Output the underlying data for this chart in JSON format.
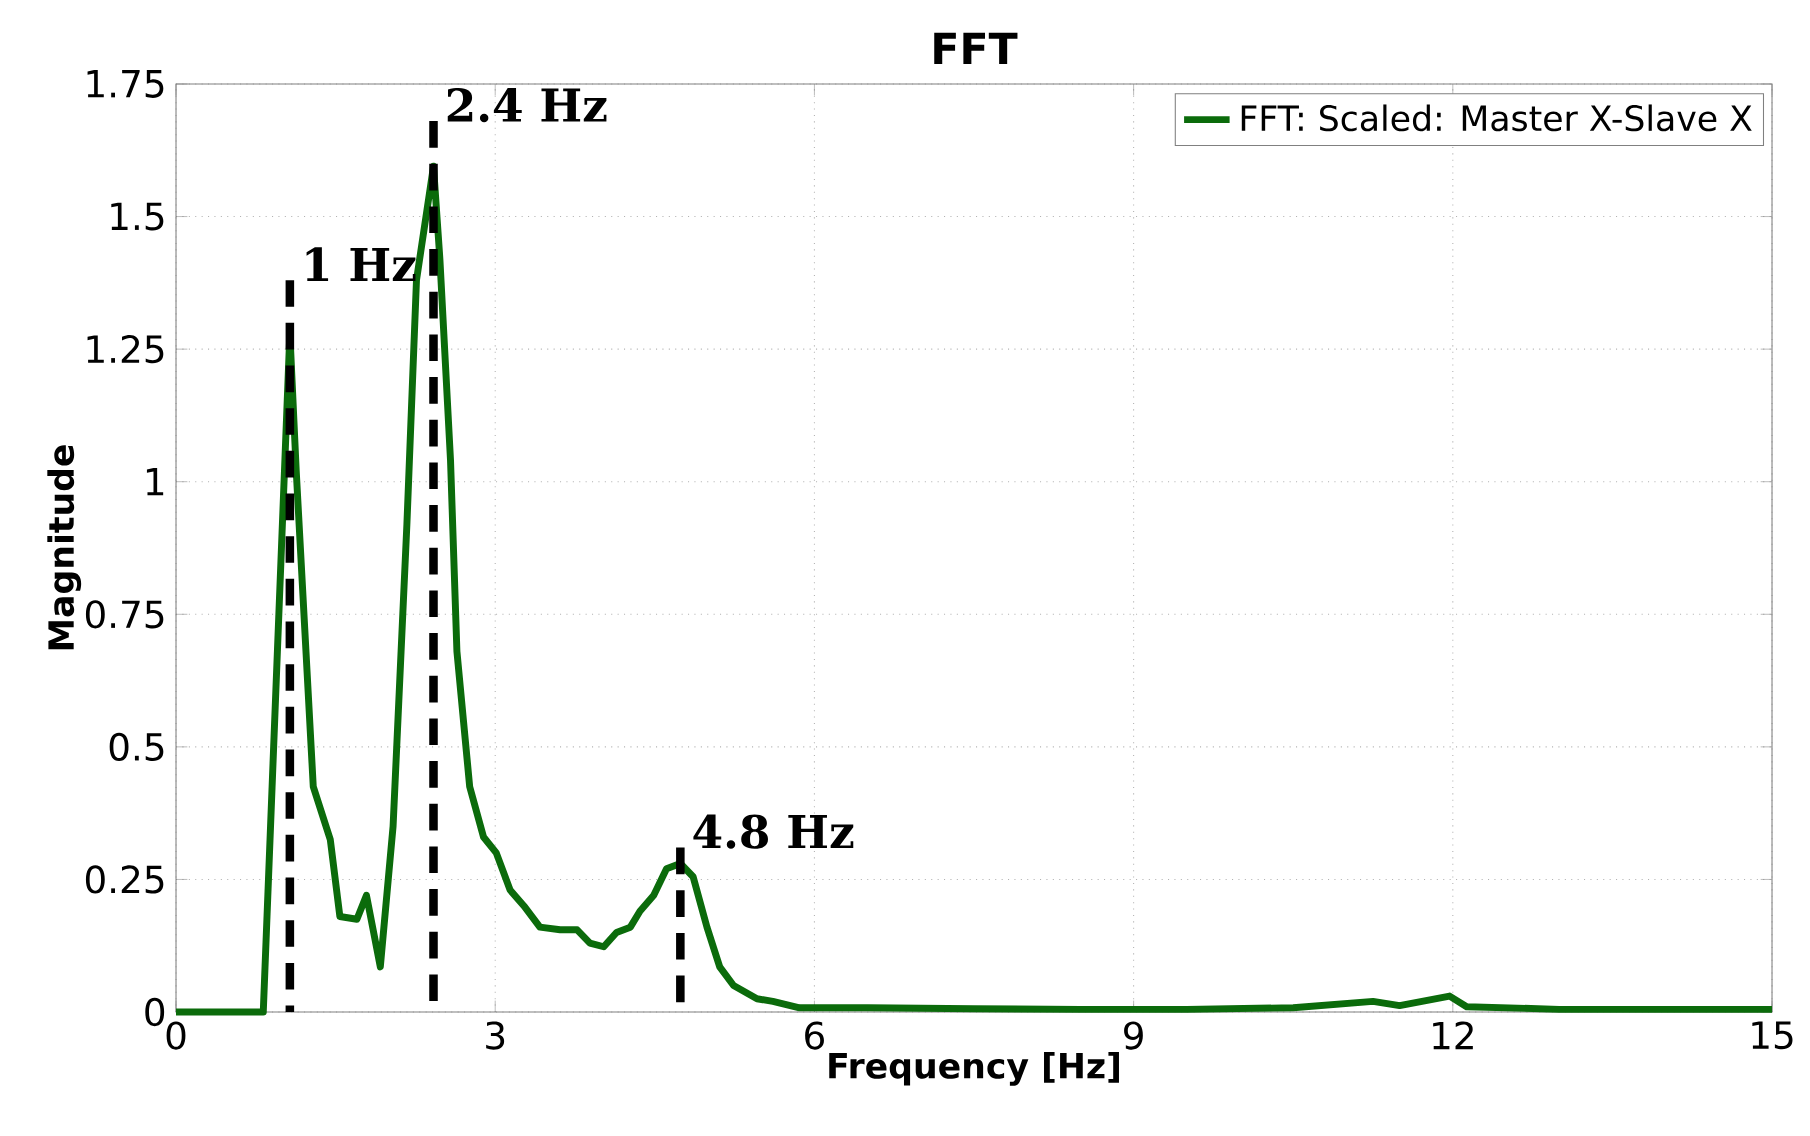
{
  "chart_data": {
    "type": "line",
    "title": "FFT",
    "xlabel": "Frequency [Hz]",
    "ylabel": "Magnitude",
    "series": [
      {
        "name": "FFT: Scaled: Master X-Slave X",
        "color": "#0b6b0b",
        "x": [
          0,
          0.82,
          1.07,
          1.13,
          1.29,
          1.45,
          1.54,
          1.7,
          1.79,
          1.92,
          2.04,
          2.17,
          2.26,
          2.42,
          2.48,
          2.58,
          2.64,
          2.76,
          2.89,
          3.01,
          3.14,
          3.27,
          3.42,
          3.61,
          3.77,
          3.89,
          4.02,
          4.14,
          4.27,
          4.36,
          4.49,
          4.61,
          4.74,
          4.86,
          4.99,
          5.11,
          5.24,
          5.46,
          5.61,
          5.86,
          6.5,
          7.5,
          8.5,
          9.5,
          10.5,
          11.25,
          11.5,
          11.97,
          12.13,
          13,
          14,
          15
        ],
        "values": [
          0,
          0,
          1.28,
          1.02,
          0.425,
          0.325,
          0.18,
          0.175,
          0.22,
          0.085,
          0.35,
          0.92,
          1.38,
          1.595,
          1.42,
          1.04,
          0.68,
          0.425,
          0.33,
          0.3,
          0.23,
          0.2,
          0.16,
          0.155,
          0.155,
          0.13,
          0.123,
          0.15,
          0.16,
          0.19,
          0.22,
          0.27,
          0.28,
          0.255,
          0.16,
          0.085,
          0.05,
          0.025,
          0.02,
          0.008,
          0.008,
          0.006,
          0.005,
          0.005,
          0.008,
          0.02,
          0.012,
          0.03,
          0.01,
          0.005,
          0.005,
          0.005
        ]
      },
      {
        "color": "#000000",
        "line_style": "dashed",
        "x": [
          1.07,
          1.07
        ],
        "values": [
          0,
          1.38
        ]
      },
      {
        "color": "#000000",
        "line_style": "dashed",
        "x": [
          2.42,
          2.42
        ],
        "values": [
          0,
          1.68
        ]
      },
      {
        "color": "#000000",
        "line_style": "dashed",
        "x": [
          4.74,
          4.74
        ],
        "values": [
          0,
          0.31
        ]
      }
    ],
    "xlim": [
      0,
      15
    ],
    "ylim": [
      0,
      1.75
    ],
    "xticks": [
      0,
      3,
      6,
      9,
      12,
      15
    ],
    "yticks": [
      0,
      0.25,
      0.5,
      0.75,
      1,
      1.25,
      1.5,
      1.75
    ],
    "grid": true,
    "legend": "top right",
    "annotations": [
      {
        "text": "1 Hz",
        "x": 1.07,
        "y": 1.38
      },
      {
        "text": "2.4 Hz",
        "x": 2.42,
        "y": 1.68
      },
      {
        "text": "4.8 Hz",
        "x": 4.74,
        "y": 0.31
      }
    ]
  }
}
